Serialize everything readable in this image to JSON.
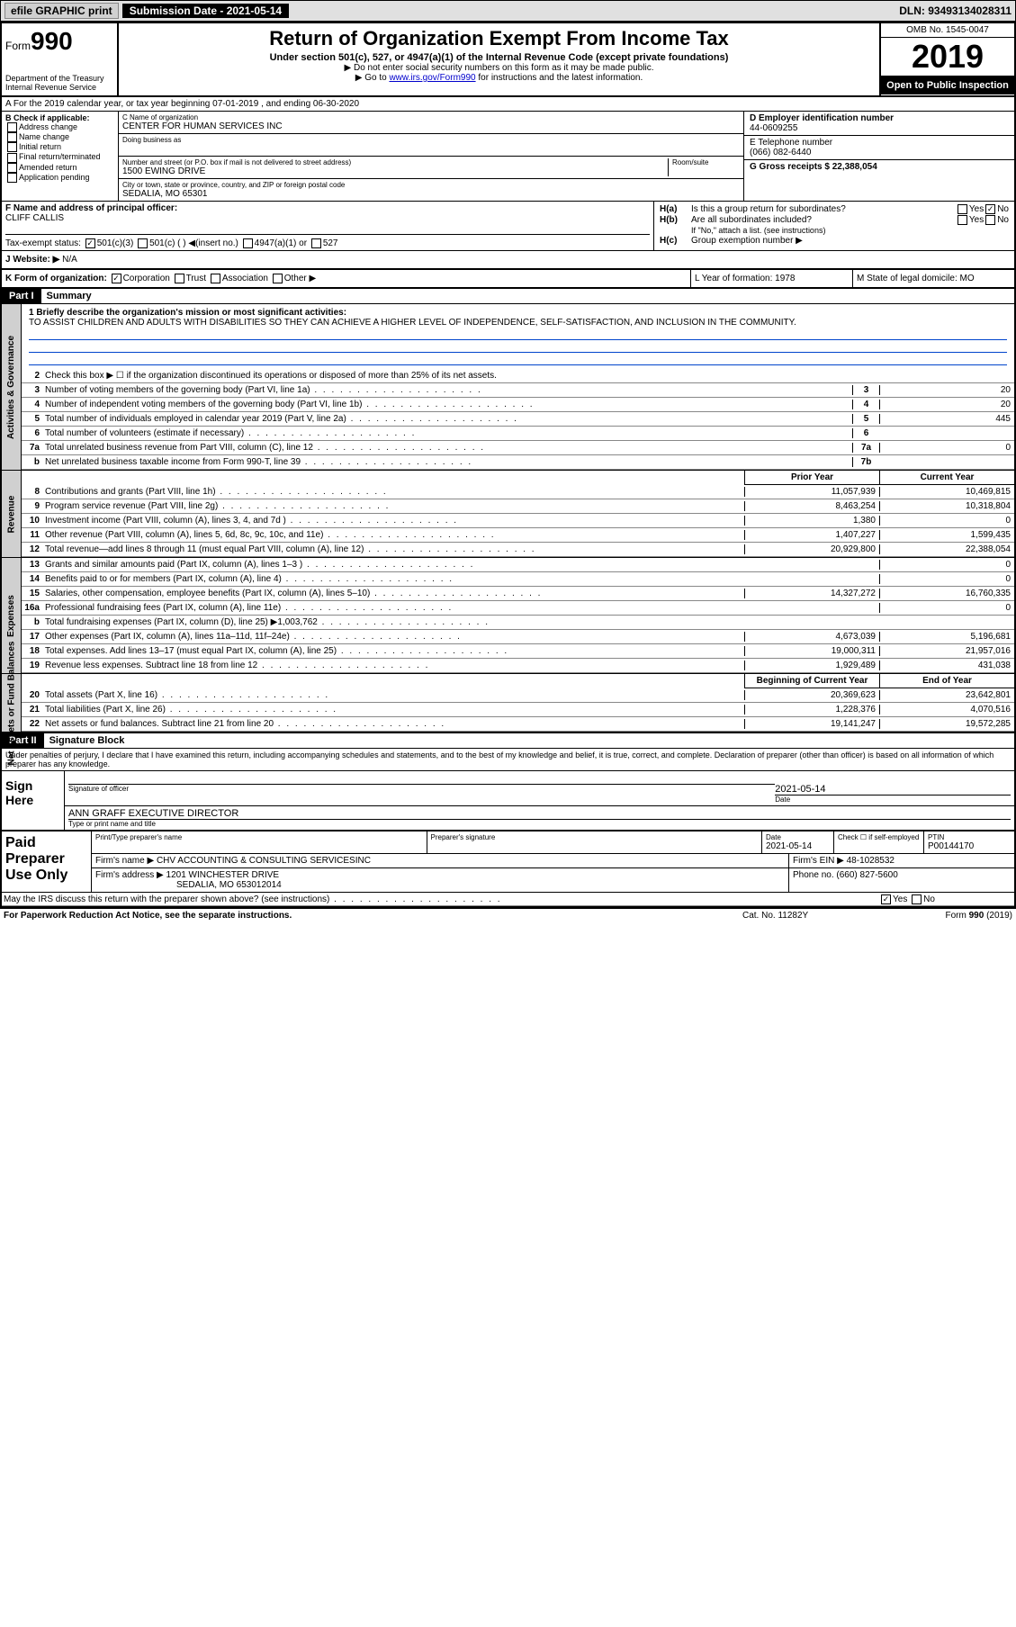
{
  "topbar": {
    "efile": "efile GRAPHIC print",
    "submission": "Submission Date - 2021-05-14",
    "dln": "DLN: 93493134028311"
  },
  "header": {
    "form_word": "Form",
    "form_num": "990",
    "dept": "Department of the Treasury\nInternal Revenue Service",
    "title": "Return of Organization Exempt From Income Tax",
    "subtitle": "Under section 501(c), 527, or 4947(a)(1) of the Internal Revenue Code (except private foundations)",
    "note1": "▶ Do not enter social security numbers on this form as it may be made public.",
    "note2_pre": "▶ Go to ",
    "note2_link": "www.irs.gov/Form990",
    "note2_post": " for instructions and the latest information.",
    "omb": "OMB No. 1545-0047",
    "year": "2019",
    "inspection": "Open to Public Inspection"
  },
  "row_a": "A For the 2019 calendar year, or tax year beginning 07-01-2019    , and ending 06-30-2020",
  "col_b": {
    "header": "B Check if applicable:",
    "items": [
      "Address change",
      "Name change",
      "Initial return",
      "Final return/terminated",
      "Amended return",
      "Application pending"
    ]
  },
  "col_c": {
    "name_label": "C Name of organization",
    "name": "CENTER FOR HUMAN SERVICES INC",
    "dba_label": "Doing business as",
    "dba": "",
    "addr_label": "Number and street (or P.O. box if mail is not delivered to street address)",
    "addr": "1500 EWING DRIVE",
    "room_label": "Room/suite",
    "city_label": "City or town, state or province, country, and ZIP or foreign postal code",
    "city": "SEDALIA, MO  65301"
  },
  "col_d": {
    "label": "D Employer identification number",
    "value": "44-0609255"
  },
  "col_e": {
    "label": "E Telephone number",
    "value": "(066) 082-6440"
  },
  "col_g": {
    "label": "G Gross receipts $ 22,388,054"
  },
  "col_f": {
    "label": "F  Name and address of principal officer:",
    "value": "CLIFF CALLIS"
  },
  "col_h": {
    "a_label": "H(a)",
    "a_text": "Is this a group return for subordinates?",
    "a_yes": "Yes",
    "a_no": "No",
    "b_label": "H(b)",
    "b_text": "Are all subordinates included?",
    "b_note": "If \"No,\" attach a list. (see instructions)",
    "c_label": "H(c)",
    "c_text": "Group exemption number ▶"
  },
  "tax_status": {
    "label": "Tax-exempt status:",
    "opt1": "501(c)(3)",
    "opt2": "501(c) (  ) ◀(insert no.)",
    "opt3": "4947(a)(1) or",
    "opt4": "527"
  },
  "website": {
    "label": "J   Website: ▶",
    "value": "N/A"
  },
  "row_k": {
    "label": "K Form of organization:",
    "corp": "Corporation",
    "trust": "Trust",
    "assoc": "Association",
    "other": "Other ▶"
  },
  "row_l": {
    "label": "L Year of formation: 1978"
  },
  "row_m": {
    "label": "M State of legal domicile: MO"
  },
  "part1": {
    "header": "Part I",
    "title": "Summary",
    "line1_label": "1  Briefly describe the organization's mission or most significant activities:",
    "mission": "TO ASSIST CHILDREN AND ADULTS WITH DISABILITIES SO THEY CAN ACHIEVE A HIGHER LEVEL OF INDEPENDENCE, SELF-SATISFACTION, AND INCLUSION IN THE COMMUNITY.",
    "line2": "Check this box ▶ ☐  if the organization discontinued its operations or disposed of more than 25% of its net assets."
  },
  "side_labels": {
    "governance": "Activities & Governance",
    "revenue": "Revenue",
    "expenses": "Expenses",
    "netassets": "Net Assets or Fund Balances"
  },
  "gov_lines": [
    {
      "n": "3",
      "d": "Number of voting members of the governing body (Part VI, line 1a)",
      "b": "3",
      "v": "20"
    },
    {
      "n": "4",
      "d": "Number of independent voting members of the governing body (Part VI, line 1b)",
      "b": "4",
      "v": "20"
    },
    {
      "n": "5",
      "d": "Total number of individuals employed in calendar year 2019 (Part V, line 2a)",
      "b": "5",
      "v": "445"
    },
    {
      "n": "6",
      "d": "Total number of volunteers (estimate if necessary)",
      "b": "6",
      "v": ""
    },
    {
      "n": "7a",
      "d": "Total unrelated business revenue from Part VIII, column (C), line 12",
      "b": "7a",
      "v": "0"
    },
    {
      "n": "b",
      "d": "Net unrelated business taxable income from Form 990-T, line 39",
      "b": "7b",
      "v": ""
    }
  ],
  "col_headers": {
    "prior": "Prior Year",
    "current": "Current Year",
    "begin": "Beginning of Current Year",
    "end": "End of Year"
  },
  "rev_lines": [
    {
      "n": "8",
      "d": "Contributions and grants (Part VIII, line 1h)",
      "p": "11,057,939",
      "c": "10,469,815"
    },
    {
      "n": "9",
      "d": "Program service revenue (Part VIII, line 2g)",
      "p": "8,463,254",
      "c": "10,318,804"
    },
    {
      "n": "10",
      "d": "Investment income (Part VIII, column (A), lines 3, 4, and 7d )",
      "p": "1,380",
      "c": "0"
    },
    {
      "n": "11",
      "d": "Other revenue (Part VIII, column (A), lines 5, 6d, 8c, 9c, 10c, and 11e)",
      "p": "1,407,227",
      "c": "1,599,435"
    },
    {
      "n": "12",
      "d": "Total revenue—add lines 8 through 11 (must equal Part VIII, column (A), line 12)",
      "p": "20,929,800",
      "c": "22,388,054"
    }
  ],
  "exp_lines": [
    {
      "n": "13",
      "d": "Grants and similar amounts paid (Part IX, column (A), lines 1–3 )",
      "p": "",
      "c": "0"
    },
    {
      "n": "14",
      "d": "Benefits paid to or for members (Part IX, column (A), line 4)",
      "p": "",
      "c": "0"
    },
    {
      "n": "15",
      "d": "Salaries, other compensation, employee benefits (Part IX, column (A), lines 5–10)",
      "p": "14,327,272",
      "c": "16,760,335"
    },
    {
      "n": "16a",
      "d": "Professional fundraising fees (Part IX, column (A), line 11e)",
      "p": "",
      "c": "0"
    },
    {
      "n": "b",
      "d": "Total fundraising expenses (Part IX, column (D), line 25) ▶1,003,762",
      "p": "shaded",
      "c": "shaded"
    },
    {
      "n": "17",
      "d": "Other expenses (Part IX, column (A), lines 11a–11d, 11f–24e)",
      "p": "4,673,039",
      "c": "5,196,681"
    },
    {
      "n": "18",
      "d": "Total expenses. Add lines 13–17 (must equal Part IX, column (A), line 25)",
      "p": "19,000,311",
      "c": "21,957,016"
    },
    {
      "n": "19",
      "d": "Revenue less expenses. Subtract line 18 from line 12",
      "p": "1,929,489",
      "c": "431,038"
    }
  ],
  "net_lines": [
    {
      "n": "20",
      "d": "Total assets (Part X, line 16)",
      "p": "20,369,623",
      "c": "23,642,801"
    },
    {
      "n": "21",
      "d": "Total liabilities (Part X, line 26)",
      "p": "1,228,376",
      "c": "4,070,516"
    },
    {
      "n": "22",
      "d": "Net assets or fund balances. Subtract line 21 from line 20",
      "p": "19,141,247",
      "c": "19,572,285"
    }
  ],
  "part2": {
    "header": "Part II",
    "title": "Signature Block",
    "penalty": "Under penalties of perjury, I declare that I have examined this return, including accompanying schedules and statements, and to the best of my knowledge and belief, it is true, correct, and complete. Declaration of preparer (other than officer) is based on all information of which preparer has any knowledge."
  },
  "sign": {
    "label": "Sign Here",
    "sig_label": "Signature of officer",
    "date": "2021-05-14",
    "date_label": "Date",
    "name": "ANN GRAFF EXECUTIVE DIRECTOR",
    "name_label": "Type or print name and title"
  },
  "paid": {
    "label": "Paid Preparer Use Only",
    "prep_name_label": "Print/Type preparer's name",
    "prep_sig_label": "Preparer's signature",
    "date_label": "Date",
    "date": "2021-05-14",
    "check_label": "Check ☐ if self-employed",
    "ptin_label": "PTIN",
    "ptin": "P00144170",
    "firm_name_label": "Firm's name    ▶",
    "firm_name": "CHV ACCOUNTING & CONSULTING SERVICESINC",
    "firm_ein_label": "Firm's EIN ▶",
    "firm_ein": "48-1028532",
    "firm_addr_label": "Firm's address ▶",
    "firm_addr": "1201 WINCHESTER DRIVE",
    "firm_city": "SEDALIA, MO  653012014",
    "phone_label": "Phone no.",
    "phone": "(660) 827-5600"
  },
  "discuss": {
    "text": "May the IRS discuss this return with the preparer shown above? (see instructions)",
    "yes": "Yes",
    "no": "No"
  },
  "footer": {
    "left": "For Paperwork Reduction Act Notice, see the separate instructions.",
    "mid": "Cat. No. 11282Y",
    "right": "Form 990 (2019)"
  }
}
